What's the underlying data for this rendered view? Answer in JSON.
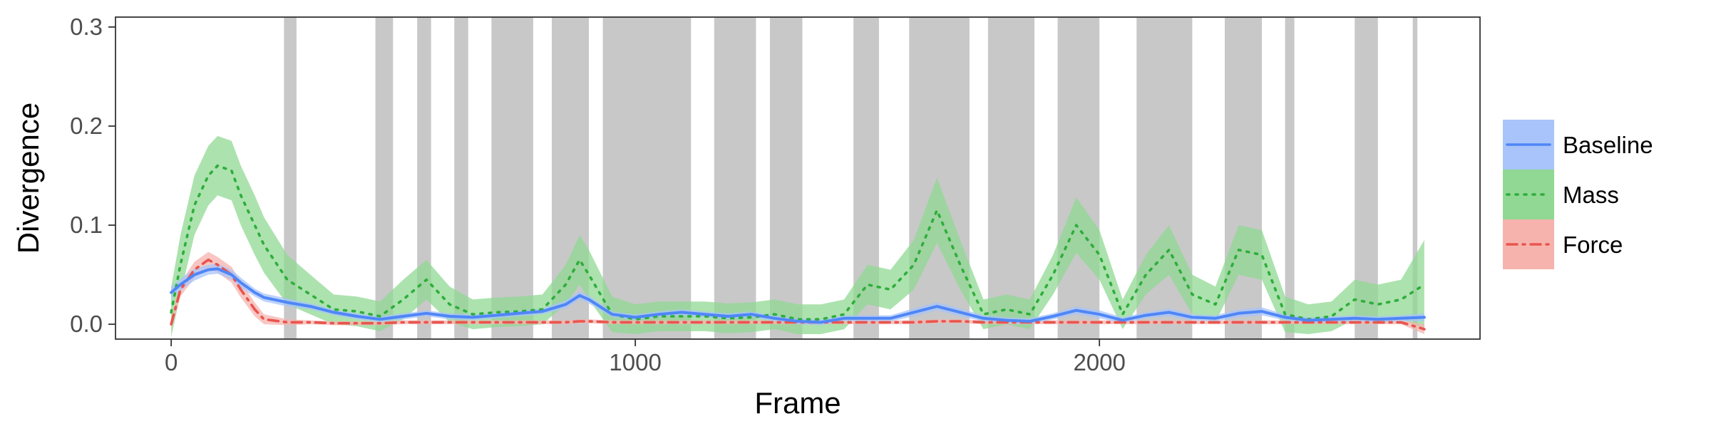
{
  "chart_data": {
    "type": "line",
    "title": "",
    "xlabel": "Frame",
    "ylabel": "Divergence",
    "xlim": [
      -120,
      2820
    ],
    "ylim": [
      -0.015,
      0.31
    ],
    "x_ticks": [
      0,
      1000,
      2000
    ],
    "y_ticks": [
      0.0,
      0.1,
      0.2,
      0.3
    ],
    "x_tick_labels": [
      "0",
      "1000",
      "2000"
    ],
    "y_tick_labels": [
      "0.0",
      "0.1",
      "0.2",
      "0.3"
    ],
    "grid": false,
    "legend_position": "right",
    "shaded_intervals": [
      [
        243,
        270
      ],
      [
        440,
        478
      ],
      [
        530,
        560
      ],
      [
        610,
        640
      ],
      [
        690,
        780
      ],
      [
        820,
        900
      ],
      [
        930,
        1120
      ],
      [
        1170,
        1260
      ],
      [
        1290,
        1360
      ],
      [
        1470,
        1525
      ],
      [
        1590,
        1720
      ],
      [
        1760,
        1860
      ],
      [
        1910,
        2000
      ],
      [
        2080,
        2200
      ],
      [
        2270,
        2350
      ],
      [
        2400,
        2420
      ],
      [
        2550,
        2600
      ],
      [
        2675,
        2685
      ]
    ],
    "series": [
      {
        "name": "Baseline",
        "color": "#4f86f7",
        "band_color": "#a8c4fa",
        "linestyle": "solid",
        "x": [
          0,
          20,
          50,
          80,
          100,
          130,
          150,
          180,
          200,
          250,
          300,
          350,
          400,
          450,
          500,
          550,
          600,
          650,
          700,
          750,
          800,
          850,
          880,
          900,
          950,
          1000,
          1050,
          1100,
          1150,
          1200,
          1250,
          1300,
          1350,
          1400,
          1450,
          1500,
          1550,
          1600,
          1650,
          1700,
          1750,
          1800,
          1850,
          1900,
          1950,
          2000,
          2050,
          2100,
          2150,
          2200,
          2250,
          2300,
          2350,
          2400,
          2450,
          2500,
          2550,
          2600,
          2650,
          2700
        ],
        "y": [
          0.032,
          0.04,
          0.05,
          0.055,
          0.056,
          0.05,
          0.042,
          0.032,
          0.027,
          0.022,
          0.018,
          0.012,
          0.008,
          0.005,
          0.008,
          0.011,
          0.008,
          0.007,
          0.009,
          0.011,
          0.013,
          0.02,
          0.029,
          0.025,
          0.01,
          0.007,
          0.01,
          0.012,
          0.01,
          0.008,
          0.01,
          0.006,
          0.003,
          0.002,
          0.006,
          0.006,
          0.006,
          0.012,
          0.018,
          0.012,
          0.006,
          0.004,
          0.003,
          0.008,
          0.014,
          0.01,
          0.004,
          0.009,
          0.012,
          0.007,
          0.006,
          0.011,
          0.013,
          0.007,
          0.004,
          0.005,
          0.006,
          0.005,
          0.006,
          0.007
        ],
        "band_halfwidth": [
          0.006,
          0.006,
          0.006,
          0.005,
          0.005,
          0.005,
          0.005,
          0.004,
          0.004,
          0.004,
          0.003,
          0.003,
          0.003,
          0.003,
          0.003,
          0.003,
          0.003,
          0.003,
          0.003,
          0.003,
          0.003,
          0.004,
          0.004,
          0.004,
          0.003,
          0.003,
          0.003,
          0.003,
          0.003,
          0.003,
          0.003,
          0.003,
          0.003,
          0.003,
          0.003,
          0.003,
          0.003,
          0.004,
          0.004,
          0.004,
          0.003,
          0.003,
          0.003,
          0.003,
          0.004,
          0.004,
          0.003,
          0.003,
          0.004,
          0.003,
          0.003,
          0.004,
          0.004,
          0.003,
          0.003,
          0.003,
          0.003,
          0.003,
          0.003,
          0.004
        ]
      },
      {
        "name": "Mass",
        "color": "#2eae3b",
        "band_color": "#90d893",
        "linestyle": "dotted",
        "x": [
          0,
          20,
          50,
          80,
          100,
          130,
          150,
          180,
          200,
          250,
          300,
          350,
          400,
          450,
          500,
          550,
          600,
          650,
          700,
          750,
          800,
          850,
          880,
          900,
          950,
          1000,
          1050,
          1100,
          1150,
          1200,
          1250,
          1300,
          1350,
          1400,
          1450,
          1500,
          1550,
          1600,
          1650,
          1700,
          1750,
          1800,
          1850,
          1900,
          1950,
          2000,
          2050,
          2100,
          2150,
          2200,
          2250,
          2300,
          2350,
          2400,
          2450,
          2500,
          2550,
          2600,
          2650,
          2700
        ],
        "y": [
          0.012,
          0.06,
          0.12,
          0.15,
          0.16,
          0.155,
          0.13,
          0.1,
          0.08,
          0.045,
          0.03,
          0.015,
          0.013,
          0.008,
          0.025,
          0.045,
          0.02,
          0.01,
          0.012,
          0.013,
          0.015,
          0.04,
          0.065,
          0.05,
          0.01,
          0.005,
          0.008,
          0.008,
          0.008,
          0.006,
          0.007,
          0.01,
          0.005,
          0.005,
          0.01,
          0.04,
          0.035,
          0.06,
          0.115,
          0.06,
          0.01,
          0.015,
          0.01,
          0.05,
          0.1,
          0.07,
          0.01,
          0.05,
          0.075,
          0.03,
          0.02,
          0.075,
          0.07,
          0.01,
          0.005,
          0.008,
          0.025,
          0.02,
          0.025,
          0.04
        ],
        "band_halfwidth": [
          0.025,
          0.03,
          0.03,
          0.03,
          0.03,
          0.03,
          0.03,
          0.03,
          0.028,
          0.025,
          0.02,
          0.015,
          0.015,
          0.015,
          0.02,
          0.02,
          0.018,
          0.015,
          0.015,
          0.015,
          0.015,
          0.02,
          0.025,
          0.025,
          0.018,
          0.015,
          0.015,
          0.015,
          0.015,
          0.015,
          0.015,
          0.015,
          0.015,
          0.015,
          0.015,
          0.02,
          0.02,
          0.025,
          0.033,
          0.025,
          0.015,
          0.015,
          0.015,
          0.02,
          0.028,
          0.025,
          0.015,
          0.02,
          0.025,
          0.02,
          0.018,
          0.025,
          0.025,
          0.018,
          0.015,
          0.015,
          0.02,
          0.02,
          0.02,
          0.045
        ]
      },
      {
        "name": "Force",
        "color": "#e8554e",
        "band_color": "#f6b3ae",
        "linestyle": "dashdot",
        "x": [
          0,
          20,
          50,
          80,
          100,
          130,
          150,
          180,
          200,
          250,
          300,
          350,
          400,
          450,
          500,
          550,
          600,
          650,
          700,
          750,
          800,
          850,
          880,
          900,
          950,
          1000,
          1050,
          1100,
          1150,
          1200,
          1250,
          1300,
          1350,
          1400,
          1450,
          1500,
          1550,
          1600,
          1650,
          1700,
          1750,
          1800,
          1850,
          1900,
          1950,
          2000,
          2050,
          2100,
          2150,
          2200,
          2250,
          2300,
          2350,
          2400,
          2450,
          2500,
          2550,
          2600,
          2650,
          2700
        ],
        "y": [
          0.0,
          0.035,
          0.055,
          0.065,
          0.06,
          0.05,
          0.035,
          0.015,
          0.005,
          0.002,
          0.002,
          0.001,
          0.001,
          0.001,
          0.002,
          0.002,
          0.002,
          0.002,
          0.002,
          0.002,
          0.002,
          0.002,
          0.003,
          0.003,
          0.002,
          0.002,
          0.002,
          0.002,
          0.002,
          0.002,
          0.002,
          0.002,
          0.002,
          0.002,
          0.002,
          0.002,
          0.002,
          0.002,
          0.003,
          0.003,
          0.002,
          0.002,
          0.002,
          0.002,
          0.002,
          0.002,
          0.002,
          0.002,
          0.002,
          0.002,
          0.002,
          0.002,
          0.002,
          0.002,
          0.002,
          0.002,
          0.002,
          0.002,
          0.002,
          -0.005
        ],
        "band_halfwidth": [
          0.006,
          0.007,
          0.008,
          0.008,
          0.008,
          0.008,
          0.008,
          0.007,
          0.005,
          0.003,
          0.002,
          0.002,
          0.002,
          0.002,
          0.002,
          0.002,
          0.002,
          0.002,
          0.002,
          0.002,
          0.002,
          0.002,
          0.002,
          0.002,
          0.002,
          0.002,
          0.002,
          0.002,
          0.002,
          0.002,
          0.002,
          0.002,
          0.002,
          0.002,
          0.002,
          0.002,
          0.002,
          0.002,
          0.002,
          0.002,
          0.002,
          0.002,
          0.002,
          0.002,
          0.002,
          0.002,
          0.002,
          0.002,
          0.002,
          0.002,
          0.002,
          0.002,
          0.002,
          0.002,
          0.002,
          0.002,
          0.002,
          0.002,
          0.002,
          0.005
        ]
      }
    ],
    "legend_order": [
      "Baseline",
      "Mass",
      "Force"
    ]
  }
}
